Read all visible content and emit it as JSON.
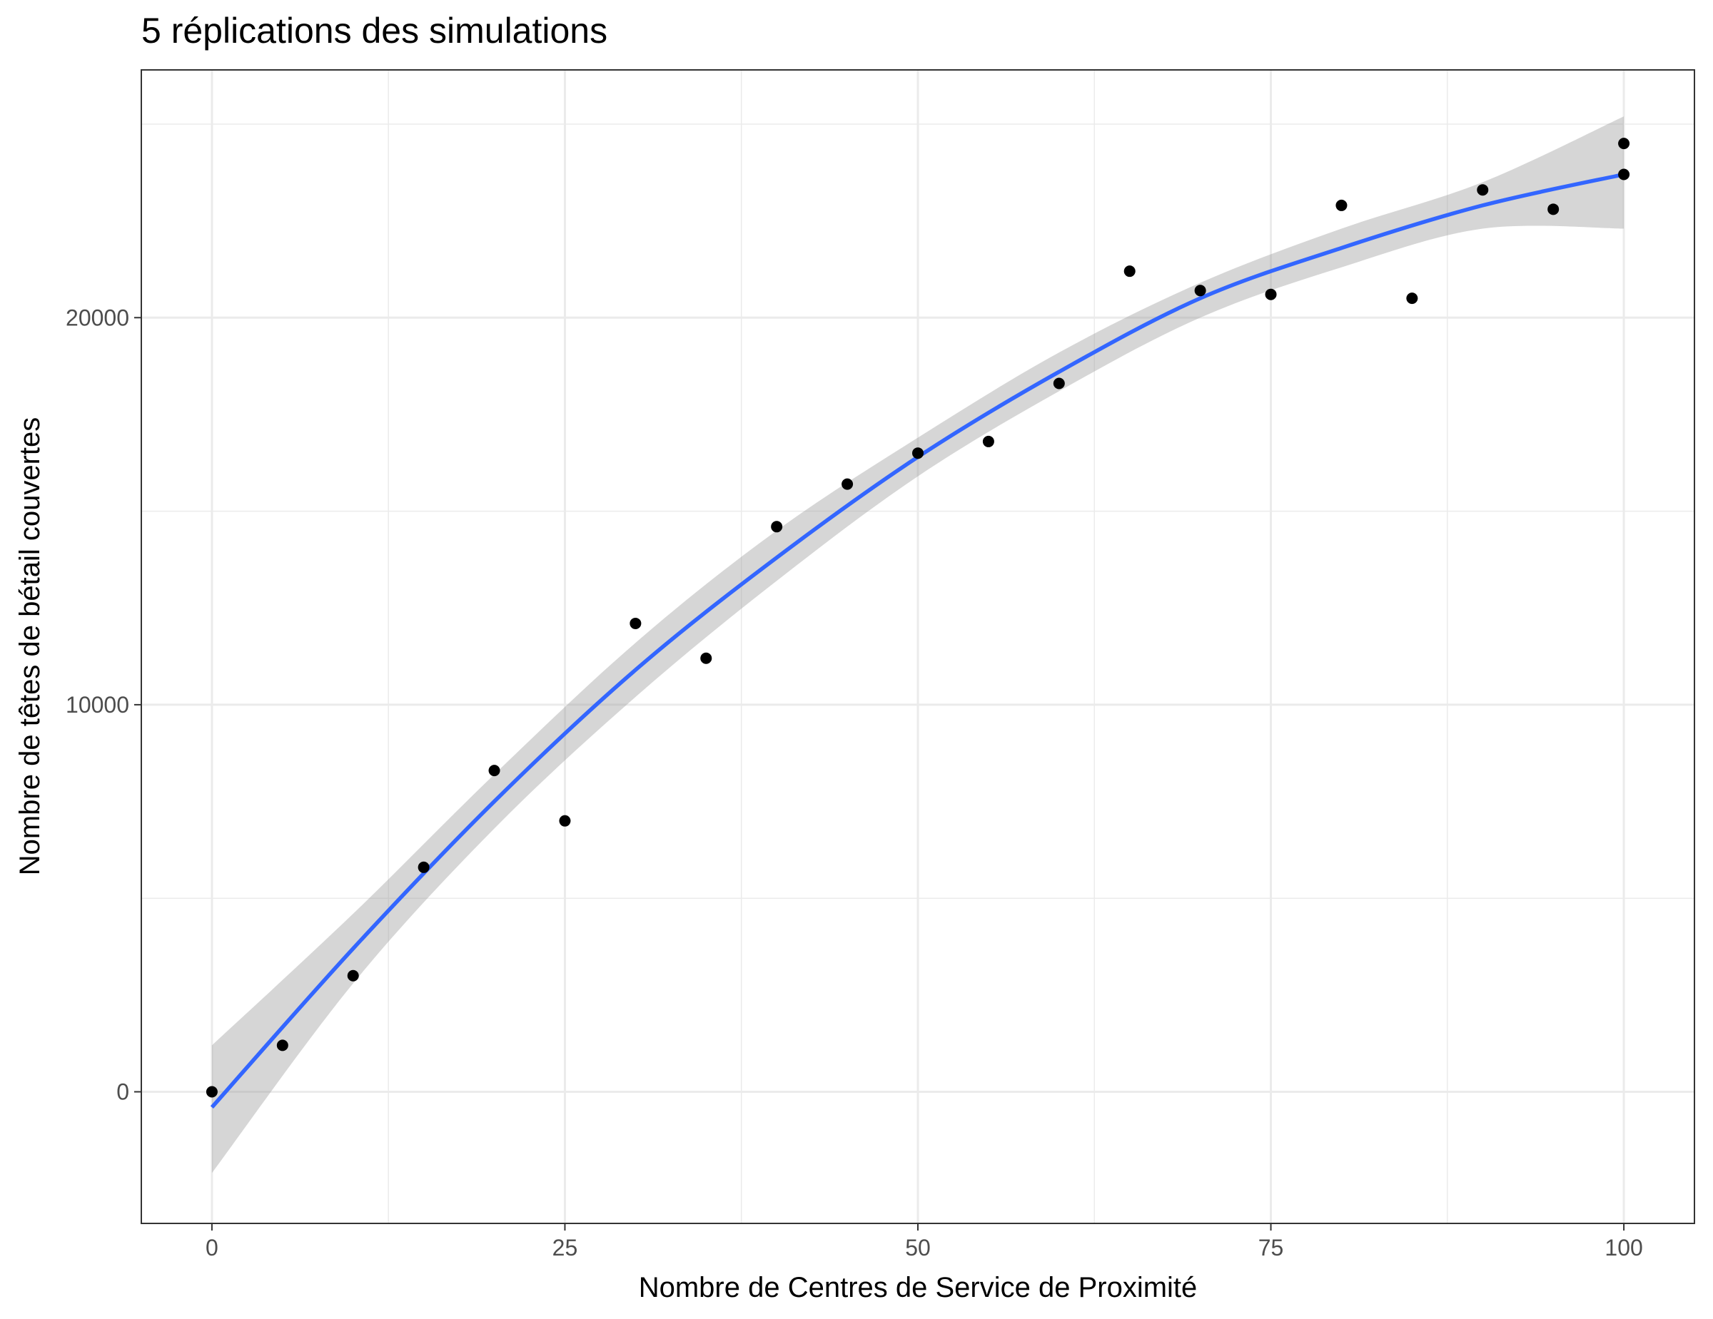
{
  "chart_data": {
    "type": "scatter",
    "title": "5 réplications des simulations",
    "xlabel": "Nombre de Centres de Service de Proximité",
    "ylabel": "Nombre de têtes de bétail couvertes",
    "xlim": [
      -5,
      105
    ],
    "ylim": [
      -3400,
      26400
    ],
    "x_ticks": [
      0,
      25,
      50,
      75,
      100
    ],
    "x_tick_labels": [
      "0",
      "25",
      "50",
      "75",
      "100"
    ],
    "y_ticks": [
      0,
      10000,
      20000
    ],
    "y_tick_labels": [
      "0",
      "10000",
      "20000"
    ],
    "grid": true,
    "legend": "none",
    "series": [
      {
        "kind": "points",
        "x": [
          0,
          5,
          10,
          15,
          20,
          25,
          30,
          35,
          40,
          45,
          50,
          55,
          60,
          65,
          70,
          75,
          80,
          85,
          90,
          95,
          100,
          100
        ],
        "y": [
          0,
          1200,
          3000,
          5800,
          8300,
          7000,
          12100,
          11200,
          14600,
          15700,
          16500,
          16800,
          18300,
          21200,
          20700,
          20600,
          22900,
          20500,
          23300,
          22800,
          24500,
          23700
        ]
      },
      {
        "kind": "smooth",
        "x": [
          0,
          10,
          20,
          30,
          40,
          50,
          60,
          70,
          80,
          90,
          100
        ],
        "y": [
          -400,
          3700,
          7500,
          10900,
          13800,
          16400,
          18600,
          20500,
          21800,
          22900,
          23700
        ],
        "ci_upper": [
          1200,
          4600,
          8200,
          11600,
          14500,
          16900,
          19100,
          20900,
          22300,
          23500,
          25200
        ],
        "ci_lower": [
          -2100,
          2800,
          6800,
          10200,
          13200,
          15900,
          18100,
          20000,
          21300,
          22300,
          22300
        ]
      }
    ],
    "colors": {
      "smooth_line": "#3366FF",
      "ci_band": "#999999",
      "points": "#000000",
      "grid": "#ebebeb",
      "panel_border": "#333333"
    }
  }
}
